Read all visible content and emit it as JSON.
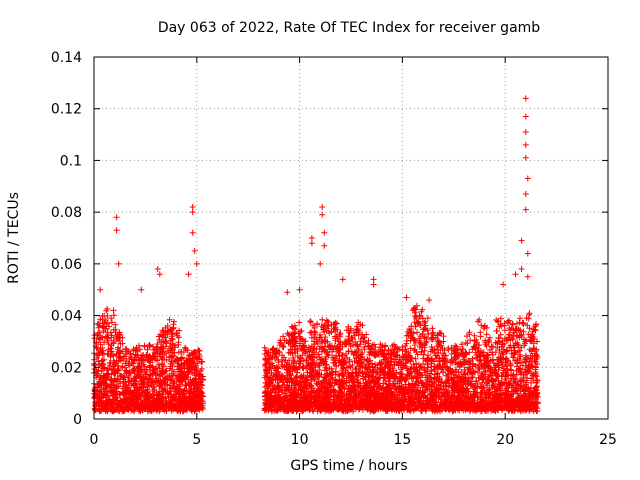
{
  "chart_data": {
    "type": "scatter",
    "title": "Day 063 of 2022, Rate Of TEC Index for receiver gamb",
    "xlabel": "GPS time / hours",
    "ylabel": "ROTI / TECUs",
    "xlim": [
      0,
      25
    ],
    "ylim": [
      0,
      0.14
    ],
    "xticks": [
      0,
      5,
      10,
      15,
      20,
      25
    ],
    "xtick_labels": [
      "0",
      "5",
      "10",
      "15",
      "20",
      "25"
    ],
    "yticks": [
      0,
      0.02,
      0.04,
      0.06,
      0.08,
      0.1,
      0.12,
      0.14
    ],
    "ytick_labels": [
      "0",
      "0.02",
      "0.04",
      "0.06",
      "0.08",
      "0.1",
      "0.12",
      "0.14"
    ],
    "grid": true,
    "marker": "+",
    "color": "#ff0000",
    "segments": [
      {
        "x_start": 0.0,
        "x_end": 5.3
      },
      {
        "x_start": 8.3,
        "x_end": 21.6
      }
    ],
    "peaks": [
      {
        "x": 0.3,
        "y": 0.05
      },
      {
        "x": 1.1,
        "y": 0.078
      },
      {
        "x": 1.1,
        "y": 0.073
      },
      {
        "x": 1.2,
        "y": 0.06
      },
      {
        "x": 2.3,
        "y": 0.05
      },
      {
        "x": 3.1,
        "y": 0.058
      },
      {
        "x": 3.2,
        "y": 0.056
      },
      {
        "x": 4.6,
        "y": 0.056
      },
      {
        "x": 4.8,
        "y": 0.082
      },
      {
        "x": 4.8,
        "y": 0.08
      },
      {
        "x": 4.8,
        "y": 0.072
      },
      {
        "x": 4.9,
        "y": 0.065
      },
      {
        "x": 5.0,
        "y": 0.06
      },
      {
        "x": 9.4,
        "y": 0.049
      },
      {
        "x": 10.0,
        "y": 0.05
      },
      {
        "x": 10.6,
        "y": 0.07
      },
      {
        "x": 10.6,
        "y": 0.068
      },
      {
        "x": 11.1,
        "y": 0.082
      },
      {
        "x": 11.1,
        "y": 0.079
      },
      {
        "x": 11.2,
        "y": 0.072
      },
      {
        "x": 11.2,
        "y": 0.067
      },
      {
        "x": 11.0,
        "y": 0.06
      },
      {
        "x": 12.1,
        "y": 0.054
      },
      {
        "x": 13.6,
        "y": 0.054
      },
      {
        "x": 13.6,
        "y": 0.052
      },
      {
        "x": 15.2,
        "y": 0.047
      },
      {
        "x": 16.3,
        "y": 0.046
      },
      {
        "x": 19.9,
        "y": 0.052
      },
      {
        "x": 20.5,
        "y": 0.056
      },
      {
        "x": 20.8,
        "y": 0.058
      },
      {
        "x": 20.8,
        "y": 0.069
      },
      {
        "x": 21.0,
        "y": 0.124
      },
      {
        "x": 21.0,
        "y": 0.117
      },
      {
        "x": 21.0,
        "y": 0.111
      },
      {
        "x": 21.0,
        "y": 0.106
      },
      {
        "x": 21.0,
        "y": 0.101
      },
      {
        "x": 21.1,
        "y": 0.093
      },
      {
        "x": 21.0,
        "y": 0.087
      },
      {
        "x": 21.0,
        "y": 0.081
      },
      {
        "x": 21.1,
        "y": 0.064
      },
      {
        "x": 21.1,
        "y": 0.055
      }
    ],
    "random_seed": 63,
    "points_per_hour": 300
  }
}
